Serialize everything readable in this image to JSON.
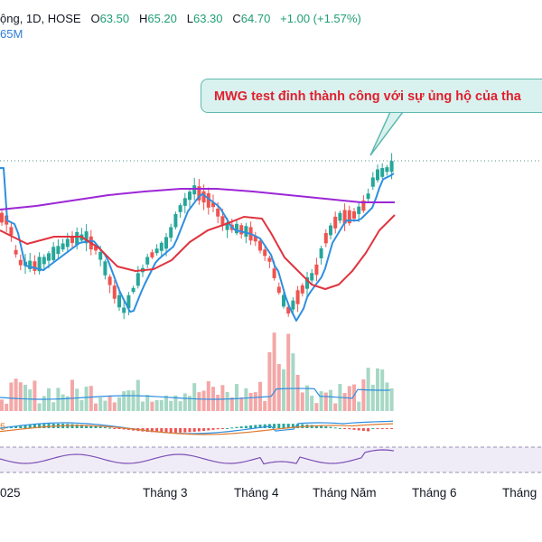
{
  "header": {
    "interval_text": "ộng, 1D, HOSE",
    "o_label": "O",
    "o_value": "63.50",
    "h_label": "H",
    "h_value": "65.20",
    "l_label": "L",
    "l_value": "63.30",
    "c_label": "C",
    "c_value": "64.70",
    "change": "+1.00 (+1.57%)",
    "volume_text": "65M"
  },
  "annotation": {
    "text": "MWG test đỉnh thành công với sự ủng hộ của tha"
  },
  "oscillator_left_label": "5",
  "x_axis": {
    "labels": [
      "025",
      "Tháng 3",
      "Tháng 4",
      "Tháng Năm",
      "Tháng 6",
      "Tháng"
    ]
  },
  "colors": {
    "up": "#26a69a",
    "down": "#ef5350",
    "ma_fast": "#2e8fe0",
    "ma_slow": "#e0343f",
    "ma_long": "#9c27d6",
    "volume_up": "#a7d8c5",
    "volume_down": "#f4a7a7",
    "callout_bg": "#d9f2ef",
    "callout_text": "#e01f2e"
  },
  "chart_data": {
    "type": "candlestick",
    "symbol_partial": "HOSE, 1D",
    "last": {
      "open": 63.5,
      "high": 65.2,
      "low": 63.3,
      "close": 64.7,
      "change": 1.0,
      "change_pct": 1.57
    },
    "price_level_line": "dotted horizontal at recent high",
    "indicators": [
      "moving averages (blue, red, purple)",
      "volume with MA",
      "MACD",
      "RSI"
    ],
    "x_labels": [
      "025",
      "Tháng 3",
      "Tháng 4",
      "Tháng Năm",
      "Tháng 6",
      "Tháng"
    ]
  }
}
